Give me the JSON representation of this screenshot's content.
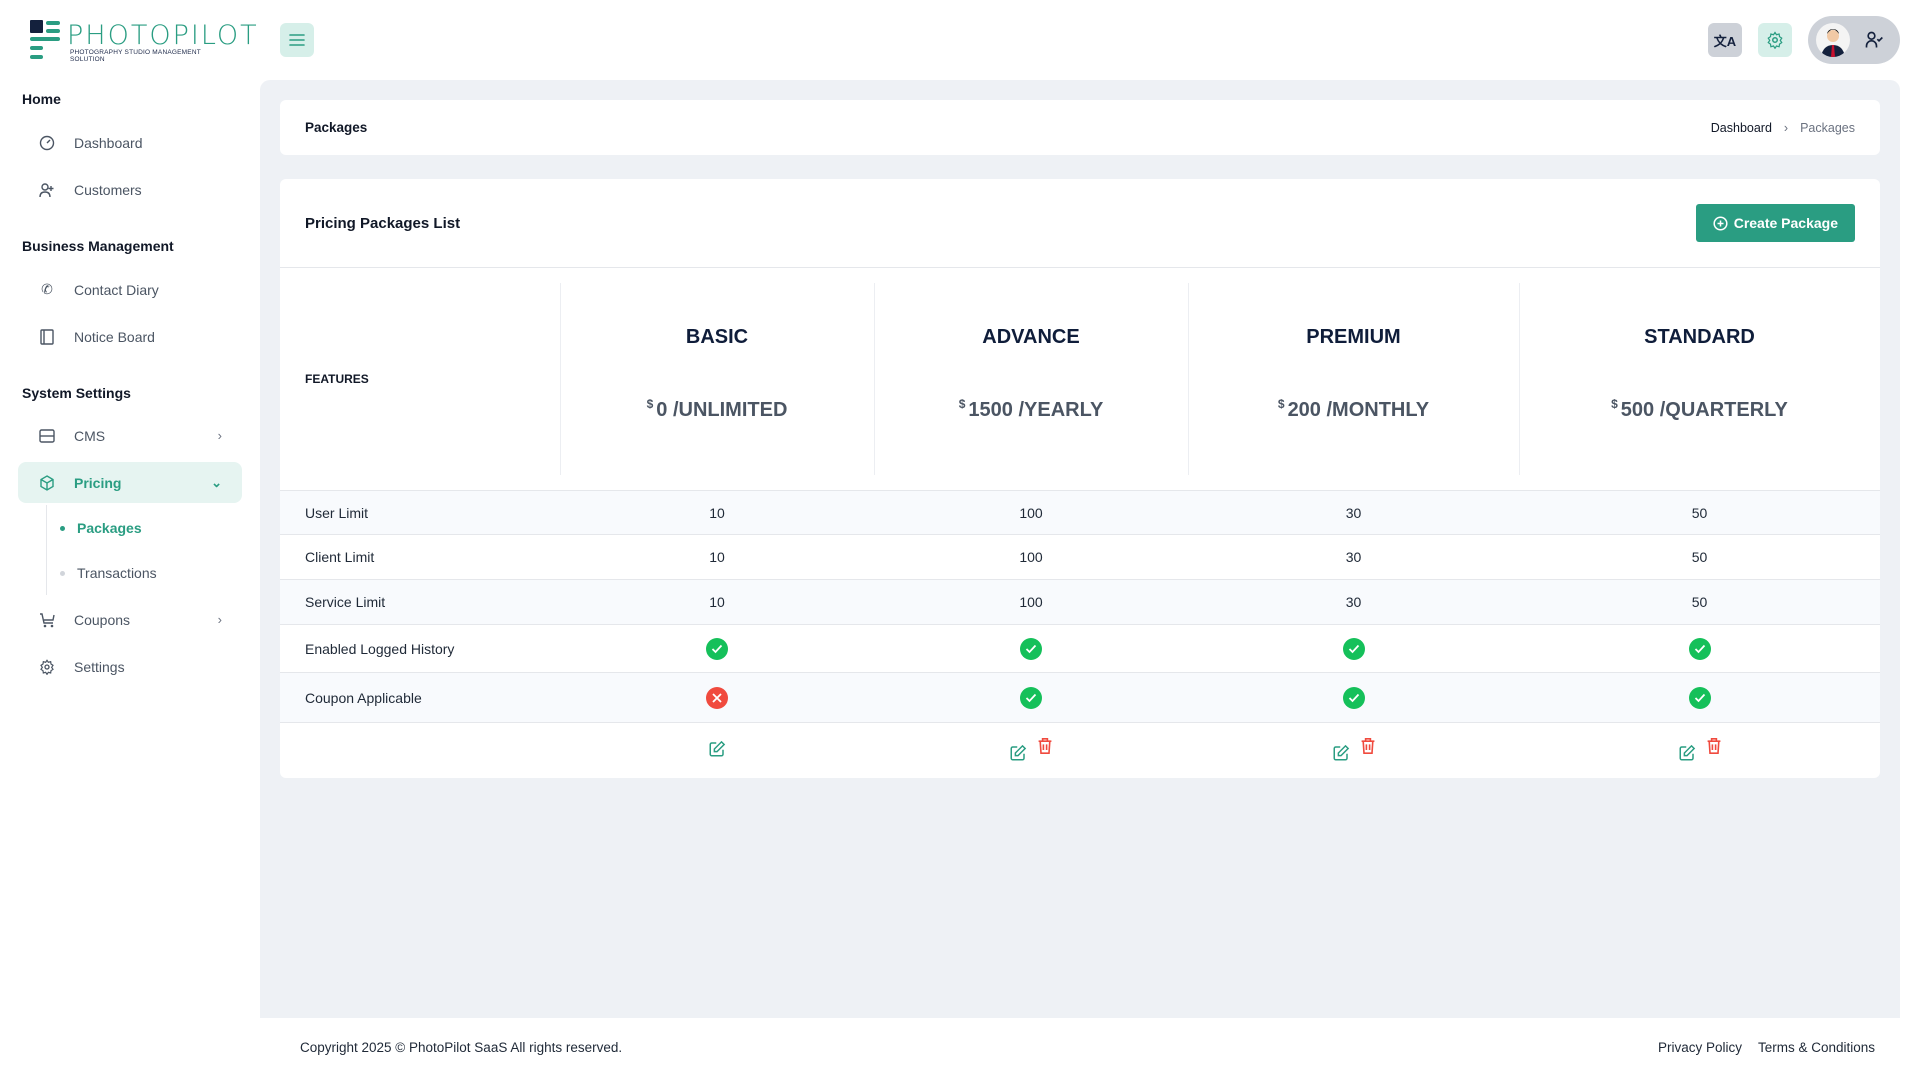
{
  "app": {
    "logo_text": "PHOTOPILOT",
    "logo_tagline": "PHOTOGRAPHY STUDIO MANAGEMENT SOLUTION",
    "accent": "#2a9d82"
  },
  "topbar": {
    "icons": [
      "menu-icon",
      "translate-icon",
      "gear-icon",
      "avatar",
      "user-check-icon"
    ]
  },
  "sidebar": {
    "sections": [
      {
        "title": "Home",
        "items": [
          {
            "label": "Dashboard",
            "icon": "dashboard-icon"
          },
          {
            "label": "Customers",
            "icon": "user-plus-icon"
          }
        ]
      },
      {
        "title": "Business Management",
        "items": [
          {
            "label": "Contact Diary",
            "icon": "phone-icon"
          },
          {
            "label": "Notice Board",
            "icon": "notebook-icon"
          }
        ]
      },
      {
        "title": "System Settings",
        "items": [
          {
            "label": "CMS",
            "icon": "layout-icon"
          },
          {
            "label": "Pricing",
            "icon": "box-icon",
            "active": true,
            "children": [
              {
                "label": "Packages",
                "active": true
              },
              {
                "label": "Transactions"
              }
            ]
          },
          {
            "label": "Coupons",
            "icon": "cart-discount-icon"
          },
          {
            "label": "Settings",
            "icon": "gear-icon"
          }
        ]
      }
    ]
  },
  "breadcrumb": {
    "title": "Packages",
    "trail": [
      "Dashboard",
      "Packages"
    ]
  },
  "packages_card": {
    "title": "Pricing Packages List",
    "create_label": "Create Package",
    "features_label": "FEATURES",
    "currency": "$",
    "packages": [
      {
        "name": "BASIC",
        "price": "0",
        "period": "/UNLIMITED",
        "user_limit": "10",
        "client_limit": "10",
        "service_limit": "10",
        "logged_history": true,
        "coupon": false,
        "deletable": false
      },
      {
        "name": "ADVANCE",
        "price": "1500",
        "period": "/YEARLY",
        "user_limit": "100",
        "client_limit": "100",
        "service_limit": "100",
        "logged_history": true,
        "coupon": true,
        "deletable": true
      },
      {
        "name": "PREMIUM",
        "price": "200",
        "period": "/MONTHLY",
        "user_limit": "30",
        "client_limit": "30",
        "service_limit": "30",
        "logged_history": true,
        "coupon": true,
        "deletable": true
      },
      {
        "name": "STANDARD",
        "price": "500",
        "period": "/QUARTERLY",
        "user_limit": "50",
        "client_limit": "50",
        "service_limit": "50",
        "logged_history": true,
        "coupon": true,
        "deletable": true
      }
    ],
    "rows": [
      "User Limit",
      "Client Limit",
      "Service Limit",
      "Enabled Logged History",
      "Coupon Applicable"
    ]
  },
  "footer": {
    "copyright": "Copyright 2025 © PhotoPilot SaaS All rights reserved.",
    "links": [
      "Privacy Policy",
      "Terms & Conditions"
    ]
  }
}
